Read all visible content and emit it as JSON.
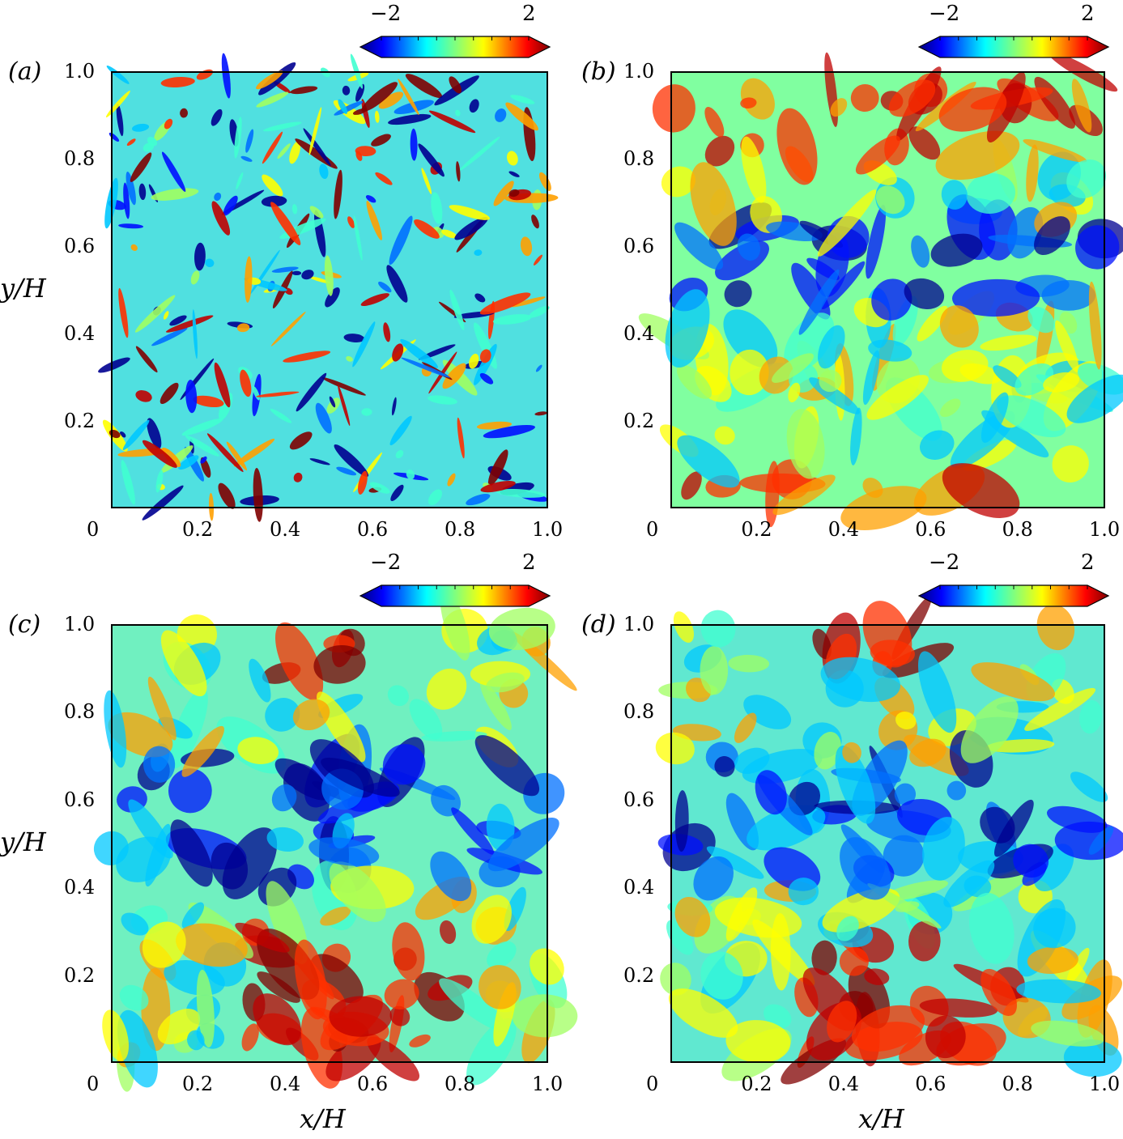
{
  "figure": {
    "axis_labels": {
      "x": "x/H",
      "y": "y/H"
    },
    "colorbar": {
      "min_label": "−2",
      "max_label": "2",
      "colormap": "jet"
    }
  },
  "chart_data": [
    {
      "type": "heatmap",
      "panel": "(a)",
      "xlabel": "",
      "ylabel": "y/H",
      "xlim": [
        0,
        1.0
      ],
      "ylim": [
        0,
        1.0
      ],
      "xticks": [
        "0",
        "0.2",
        "0.4",
        "0.6",
        "0.8",
        "1.0"
      ],
      "yticks": [
        "0.2",
        "0.4",
        "0.6",
        "0.8",
        "1.0"
      ],
      "colorbar_range": [
        -2,
        2
      ],
      "pattern": "filamentary"
    },
    {
      "type": "heatmap",
      "panel": "(b)",
      "xlabel": "",
      "ylabel": "",
      "xlim": [
        0,
        1.0
      ],
      "ylim": [
        0,
        1.0
      ],
      "xticks": [
        "0",
        "0.2",
        "0.4",
        "0.6",
        "0.8",
        "1.0"
      ],
      "yticks": [
        "0.2",
        "0.4",
        "0.6",
        "0.8",
        "1.0"
      ],
      "colorbar_range": [
        -2,
        2
      ],
      "pattern": "large-scale"
    },
    {
      "type": "heatmap",
      "panel": "(c)",
      "xlabel": "x/H",
      "ylabel": "y/H",
      "xlim": [
        0,
        1.0
      ],
      "ylim": [
        0,
        1.0
      ],
      "xticks": [
        "0",
        "0.2",
        "0.4",
        "0.6",
        "0.8",
        "1.0"
      ],
      "yticks": [
        "0.2",
        "0.4",
        "0.6",
        "0.8",
        "1.0"
      ],
      "colorbar_range": [
        -2,
        2
      ],
      "pattern": "plumes-smooth"
    },
    {
      "type": "heatmap",
      "panel": "(d)",
      "xlabel": "x/H",
      "ylabel": "",
      "xlim": [
        0,
        1.0
      ],
      "ylim": [
        0,
        1.0
      ],
      "xticks": [
        "0",
        "0.2",
        "0.4",
        "0.6",
        "0.8",
        "1.0"
      ],
      "yticks": [
        "0.2",
        "0.4",
        "0.6",
        "0.8",
        "1.0"
      ],
      "colorbar_range": [
        -2,
        2
      ],
      "pattern": "plumes-fine"
    }
  ]
}
